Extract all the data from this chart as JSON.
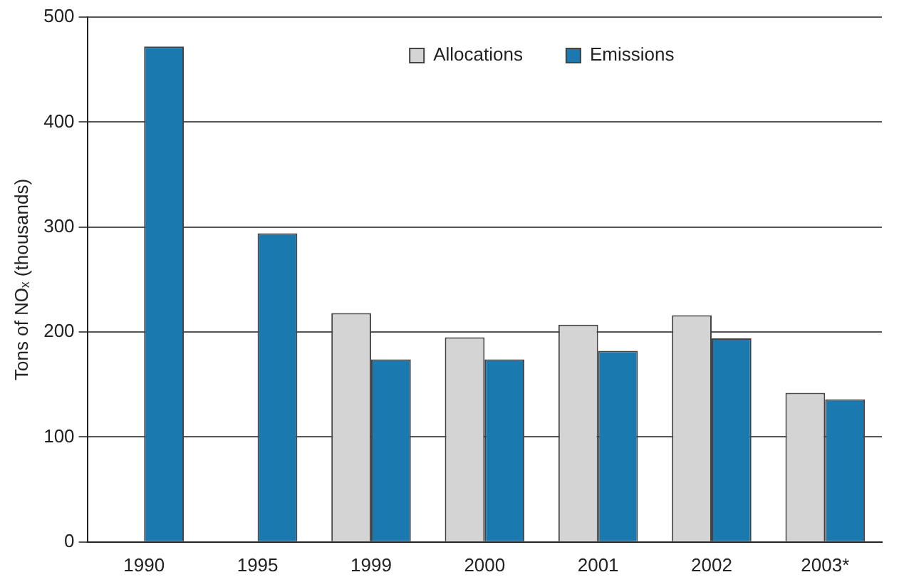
{
  "chart_data": {
    "type": "bar",
    "ylabel": "Tons of NOₓ (thousands)",
    "categories": [
      "1990",
      "1995",
      "1999",
      "2000",
      "2001",
      "2002",
      "2003*"
    ],
    "series": [
      {
        "name": "Allocations",
        "color": "#d4d4d4",
        "values": [
          null,
          null,
          218,
          195,
          207,
          216,
          142
        ]
      },
      {
        "name": "Emissions",
        "color": "#1a7ab0",
        "values": [
          472,
          294,
          174,
          174,
          182,
          194,
          136
        ]
      }
    ],
    "ylim": [
      0,
      500
    ],
    "yticks": [
      0,
      100,
      200,
      300,
      400,
      500
    ],
    "grid": "y",
    "legend": "top"
  }
}
